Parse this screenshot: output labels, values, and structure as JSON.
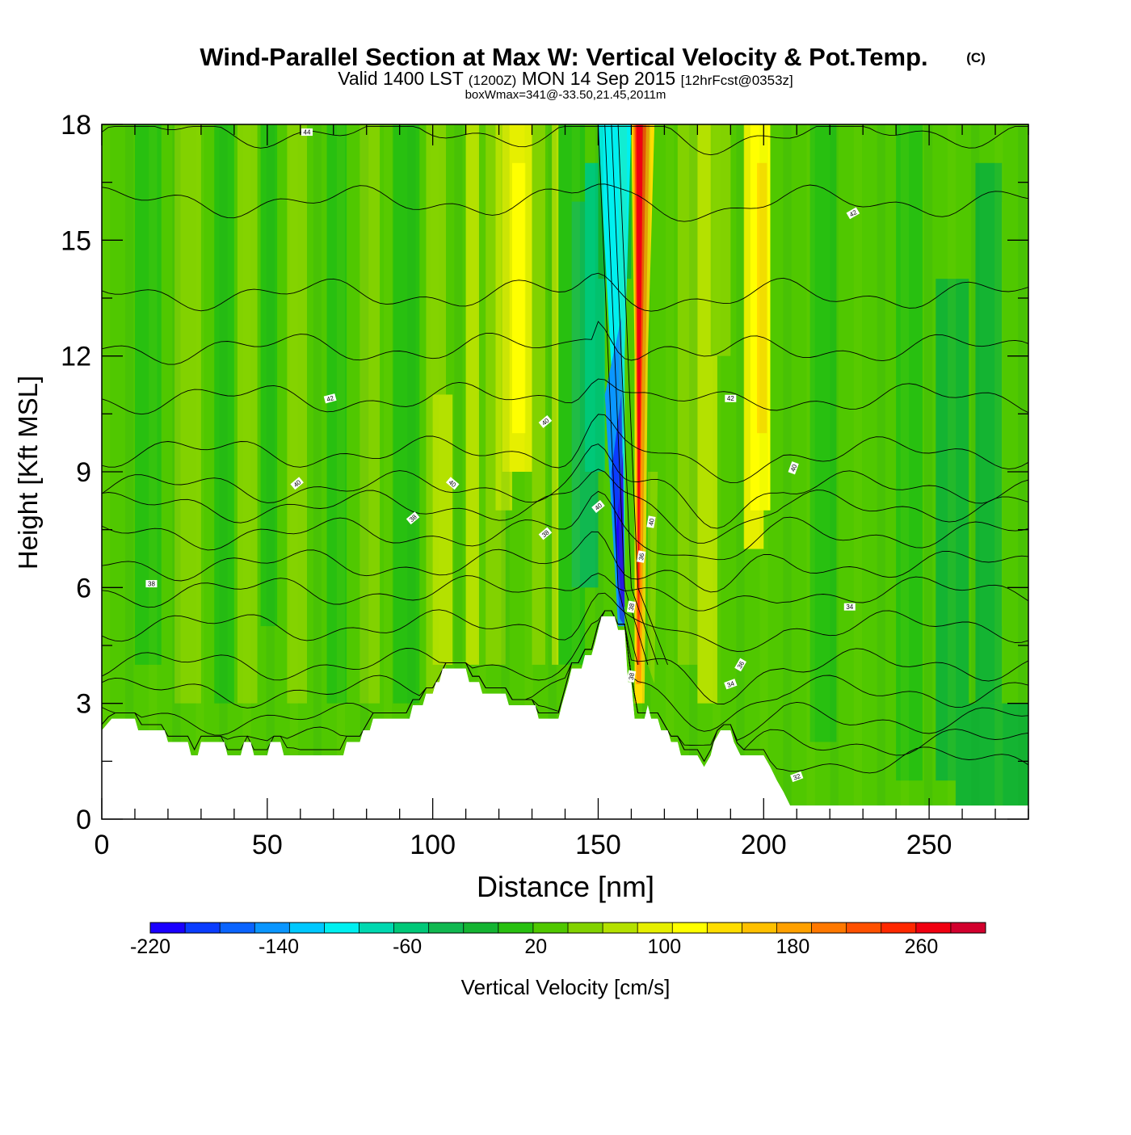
{
  "chart_data": {
    "type": "heatmap",
    "title": "Wind-Parallel Section at Max W: Vertical Velocity & Pot.Temp.",
    "title_mark": "(C)",
    "subtitle": {
      "prefix": "Valid 1400 LST",
      "utc": "(1200Z)",
      "date": "MON 14 Sep 2015",
      "forecast": "[12hrFcst@0353z]"
    },
    "box_wmax": "boxWmax=341@-33.50,21.45,2011m",
    "xlabel": "Distance [nm]",
    "ylabel": "Height [Kft MSL]",
    "xlim": [
      0,
      280
    ],
    "ylim": [
      0,
      18
    ],
    "x_ticks": [
      "0",
      "50",
      "100",
      "150",
      "200",
      "250"
    ],
    "y_ticks": [
      "0",
      "3",
      "6",
      "9",
      "12",
      "15",
      "18"
    ],
    "colorbar": {
      "label": "Vertical Velocity [cm/s]",
      "range": [
        -220,
        300
      ],
      "tick_labels": [
        "-220",
        "-140",
        "-60",
        "20",
        "100",
        "180",
        "260"
      ],
      "colors": [
        "#1a00ff",
        "#0a3cff",
        "#0a64ff",
        "#0a96ff",
        "#00c8ff",
        "#00f0f0",
        "#00d8b0",
        "#00c878",
        "#10b850",
        "#14b432",
        "#28c010",
        "#50c800",
        "#82d200",
        "#b4e100",
        "#e6ef00",
        "#ffff00",
        "#ffdd00",
        "#ffc000",
        "#ffa000",
        "#ff7800",
        "#ff5000",
        "#ff2800",
        "#f00010",
        "#d2002d"
      ]
    },
    "features": [
      {
        "name": "downdraft core",
        "x": 157,
        "height_range": [
          5,
          10
        ],
        "value": -220
      },
      {
        "name": "updraft core",
        "x": 162,
        "height_range": [
          3,
          18
        ],
        "value": 300
      },
      {
        "name": "updraft band",
        "x": 125,
        "height_range": [
          10,
          18
        ],
        "value": 90
      },
      {
        "name": "updraft band",
        "x": 200,
        "height_range": [
          7,
          18
        ],
        "value": 95
      }
    ],
    "terrain_kft": [
      [
        0,
        2.3
      ],
      [
        3,
        2.6
      ],
      [
        10,
        2.6
      ],
      [
        11,
        2.3
      ],
      [
        19,
        2.3
      ],
      [
        20,
        2.0
      ],
      [
        26,
        2.0
      ],
      [
        27,
        1.65
      ],
      [
        29,
        1.65
      ],
      [
        30,
        2.0
      ],
      [
        37,
        2.0
      ],
      [
        38,
        1.65
      ],
      [
        42,
        1.65
      ],
      [
        43,
        2.0
      ],
      [
        45,
        2.0
      ],
      [
        46,
        1.65
      ],
      [
        50,
        1.65
      ],
      [
        51,
        2.0
      ],
      [
        54,
        2.0
      ],
      [
        55,
        1.65
      ],
      [
        73,
        1.65
      ],
      [
        74,
        2.0
      ],
      [
        78,
        2.0
      ],
      [
        79,
        2.3
      ],
      [
        81,
        2.3
      ],
      [
        82,
        2.6
      ],
      [
        93,
        2.6
      ],
      [
        94,
        2.95
      ],
      [
        97,
        2.95
      ],
      [
        98,
        3.25
      ],
      [
        100,
        3.25
      ],
      [
        101,
        3.55
      ],
      [
        102,
        3.55
      ],
      [
        103,
        3.9
      ],
      [
        110,
        3.9
      ],
      [
        111,
        3.55
      ],
      [
        114,
        3.55
      ],
      [
        115,
        3.25
      ],
      [
        122,
        3.25
      ],
      [
        123,
        2.95
      ],
      [
        131,
        2.95
      ],
      [
        132,
        2.6
      ],
      [
        138,
        2.6
      ],
      [
        139,
        2.95
      ],
      [
        140,
        3.25
      ],
      [
        141,
        3.55
      ],
      [
        142,
        3.9
      ],
      [
        145,
        3.9
      ],
      [
        146,
        4.25
      ],
      [
        148,
        4.25
      ],
      [
        149,
        4.55
      ],
      [
        150,
        4.9
      ],
      [
        151,
        5.25
      ],
      [
        155,
        5.25
      ],
      [
        156,
        4.9
      ],
      [
        158,
        4.9
      ],
      [
        159,
        3.55
      ],
      [
        160,
        3.55
      ],
      [
        161,
        2.6
      ],
      [
        164,
        2.6
      ],
      [
        165,
        2.95
      ],
      [
        166,
        2.6
      ],
      [
        168,
        2.6
      ],
      [
        169,
        2.3
      ],
      [
        171,
        2.3
      ],
      [
        172,
        2.0
      ],
      [
        174,
        2.0
      ],
      [
        175,
        1.65
      ],
      [
        180,
        1.65
      ],
      [
        182,
        1.35
      ],
      [
        184,
        1.65
      ],
      [
        185,
        2.0
      ],
      [
        187,
        2.3
      ],
      [
        190,
        2.3
      ],
      [
        191,
        2.0
      ],
      [
        193,
        1.65
      ],
      [
        200,
        1.65
      ],
      [
        202,
        1.35
      ],
      [
        204,
        1.0
      ],
      [
        206,
        0.7
      ],
      [
        208,
        0.35
      ],
      [
        280,
        0.35
      ]
    ],
    "theta_isentrope_labels": [
      {
        "text": "44",
        "x": 62,
        "y": 17.8,
        "angle": 0
      },
      {
        "text": "42",
        "x": 227,
        "y": 15.7,
        "angle": -30
      },
      {
        "text": "42",
        "x": 69,
        "y": 10.9,
        "angle": -15
      },
      {
        "text": "42",
        "x": 190,
        "y": 10.9,
        "angle": 0
      },
      {
        "text": "40",
        "x": 134,
        "y": 10.3,
        "angle": -40
      },
      {
        "text": "40",
        "x": 59,
        "y": 8.7,
        "angle": -40
      },
      {
        "text": "40",
        "x": 106,
        "y": 8.7,
        "angle": 40
      },
      {
        "text": "40",
        "x": 150,
        "y": 8.1,
        "angle": -40
      },
      {
        "text": "40",
        "x": 209,
        "y": 9.1,
        "angle": -70
      },
      {
        "text": "40",
        "x": 166,
        "y": 7.7,
        "angle": -80
      },
      {
        "text": "38",
        "x": 94,
        "y": 7.8,
        "angle": -40
      },
      {
        "text": "38",
        "x": 134,
        "y": 7.4,
        "angle": -40
      },
      {
        "text": "38",
        "x": 15,
        "y": 6.1,
        "angle": 0
      },
      {
        "text": "38",
        "x": 160,
        "y": 5.5,
        "angle": -80
      },
      {
        "text": "38",
        "x": 160,
        "y": 3.7,
        "angle": -80
      },
      {
        "text": "36",
        "x": 163,
        "y": 6.8,
        "angle": -80
      },
      {
        "text": "36",
        "x": 193,
        "y": 4.0,
        "angle": -60
      },
      {
        "text": "34",
        "x": 226,
        "y": 5.5,
        "angle": 0
      },
      {
        "text": "34",
        "x": 190,
        "y": 3.5,
        "angle": -20
      },
      {
        "text": "32",
        "x": 210,
        "y": 1.1,
        "angle": -20
      }
    ]
  }
}
